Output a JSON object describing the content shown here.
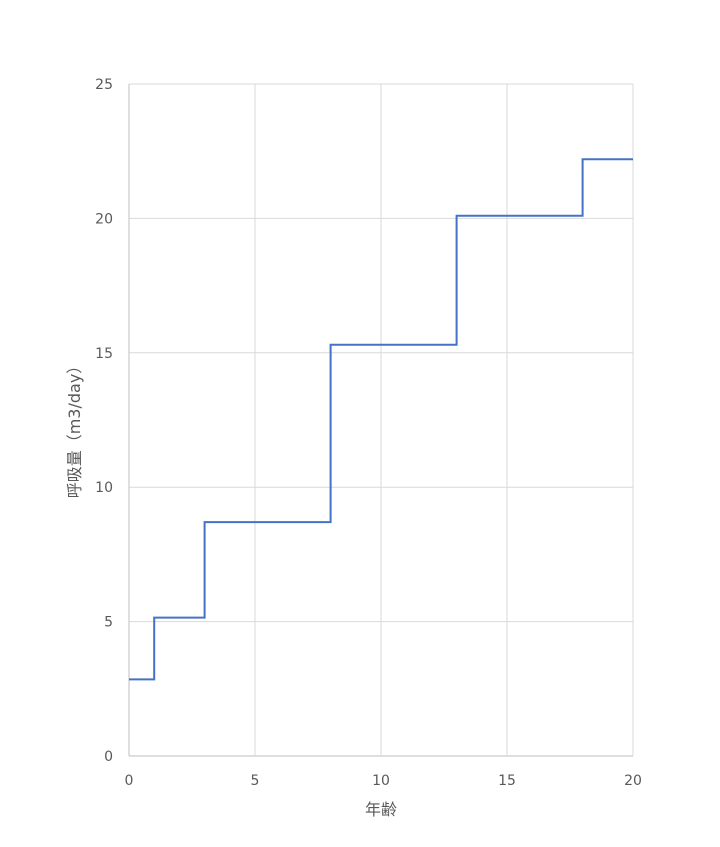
{
  "chart_data": {
    "type": "line",
    "step": true,
    "title": "",
    "xlabel": "年齢",
    "ylabel": "呼吸量（m3/day）",
    "xlim": [
      0,
      20
    ],
    "ylim": [
      0,
      25
    ],
    "xticks": [
      0,
      5,
      10,
      15,
      20
    ],
    "yticks": [
      0,
      5,
      10,
      15,
      20,
      25
    ],
    "grid": true,
    "legend": "none",
    "series": [
      {
        "color": "#4472C4",
        "points": [
          [
            0,
            2.85
          ],
          [
            1,
            2.85
          ],
          [
            1,
            5.15
          ],
          [
            3,
            5.15
          ],
          [
            3,
            8.7
          ],
          [
            8,
            8.7
          ],
          [
            8,
            15.3
          ],
          [
            13,
            15.3
          ],
          [
            13,
            20.1
          ],
          [
            18,
            20.1
          ],
          [
            18,
            22.2
          ],
          [
            20,
            22.2
          ]
        ]
      }
    ]
  }
}
